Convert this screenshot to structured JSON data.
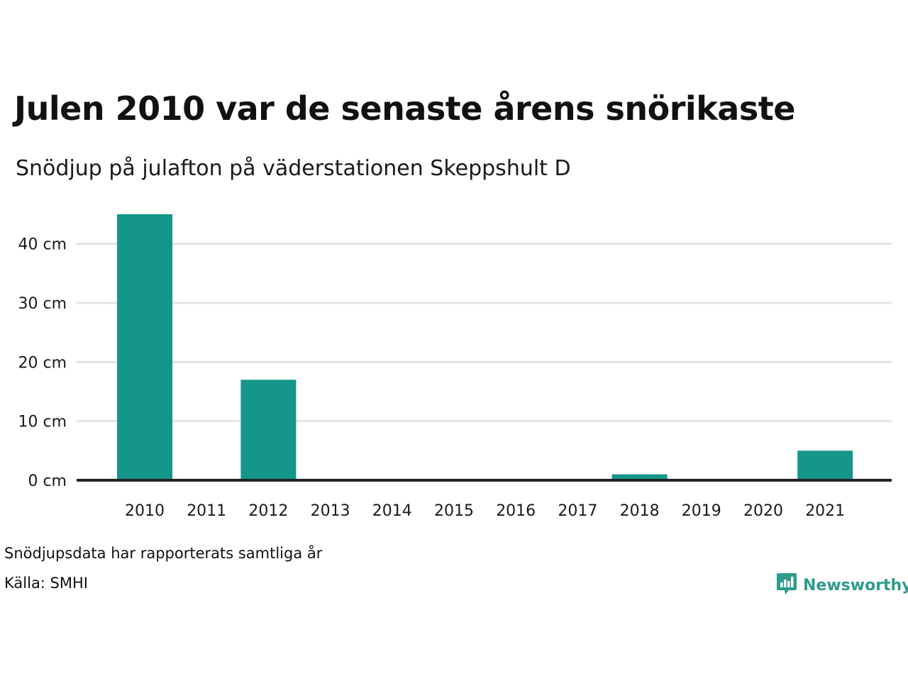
{
  "header": {
    "title": "Julen 2010 var de senaste årens snörikaste",
    "subtitle": "Snödjup på julafton på väderstationen Skeppshult D"
  },
  "footer": {
    "note": "Snödjupsdata har rapporterats samtliga år",
    "source": "Källa: SMHI",
    "brand": "Newsworthy"
  },
  "colors": {
    "bar": "#14968a",
    "grid": "#e3e3e8",
    "baseline": "#222222",
    "brand": "#2e9b8b"
  },
  "chart_data": {
    "type": "bar",
    "categories": [
      "2010",
      "2011",
      "2012",
      "2013",
      "2014",
      "2015",
      "2016",
      "2017",
      "2018",
      "2019",
      "2020",
      "2021"
    ],
    "values": [
      45,
      0,
      17,
      0,
      0,
      0,
      0,
      0,
      1,
      0,
      0,
      5
    ],
    "ylim": [
      0,
      45
    ],
    "yticks": [
      0,
      10,
      20,
      30,
      40
    ],
    "ytick_labels": [
      "0 cm",
      "10 cm",
      "20 cm",
      "30 cm",
      "40 cm"
    ],
    "grid": true,
    "legend": "none"
  }
}
